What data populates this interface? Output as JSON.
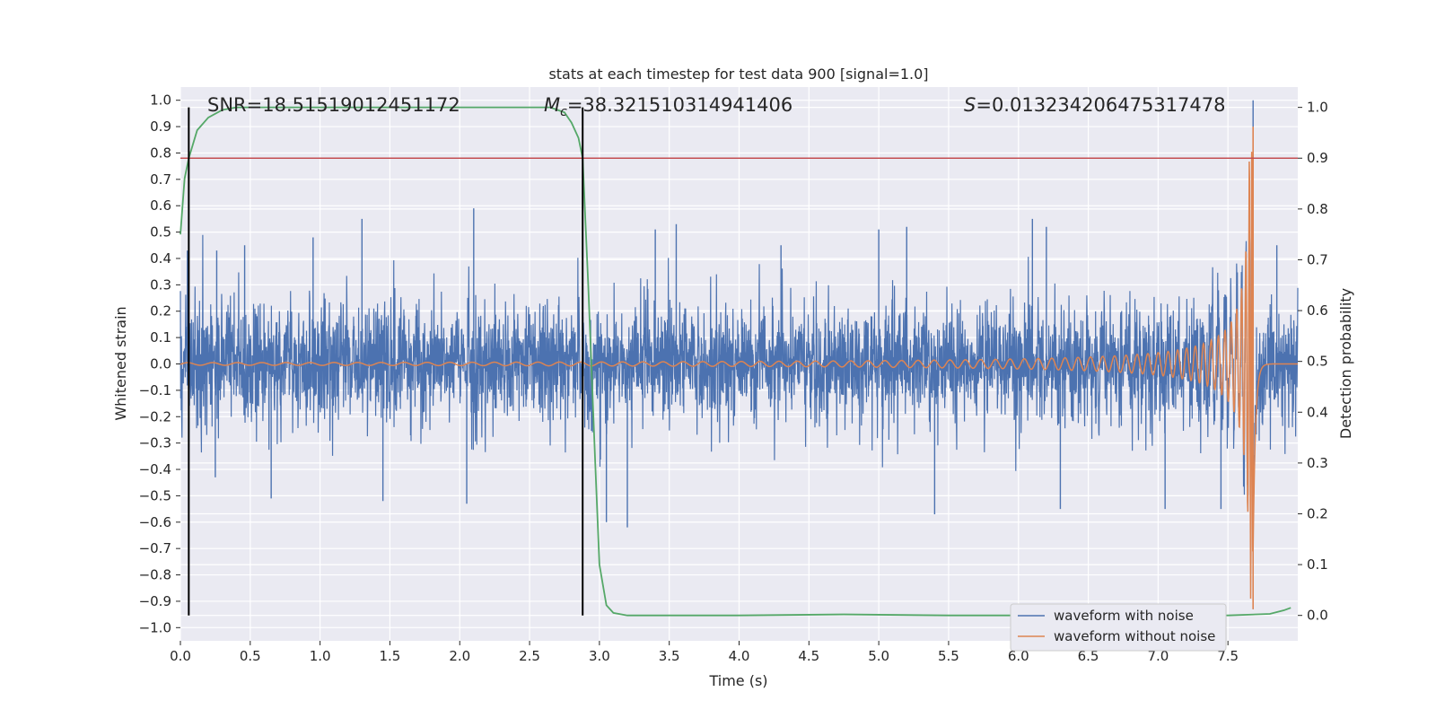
{
  "chart_data": {
    "type": "line",
    "title": "stats at each timestep for test data 900 [signal=1.0]",
    "xlabel": "Time (s)",
    "ylabel_left": "Whitened strain",
    "ylabel_right": "Detection probability",
    "xlim": [
      0,
      8.0
    ],
    "ylim_left": [
      -1.05,
      1.05
    ],
    "ylim_right": [
      -0.05,
      1.04
    ],
    "x_ticks": [
      "0.0",
      "0.5",
      "1.0",
      "1.5",
      "2.0",
      "2.5",
      "3.0",
      "3.5",
      "4.0",
      "4.5",
      "5.0",
      "5.5",
      "6.0",
      "6.5",
      "7.0",
      "7.5"
    ],
    "y_ticks_left": [
      "1.0",
      "0.9",
      "0.8",
      "0.7",
      "0.6",
      "0.5",
      "0.4",
      "0.3",
      "0.2",
      "0.1",
      "0.0",
      "−0.1",
      "−0.2",
      "−0.3",
      "−0.4",
      "−0.5",
      "−0.6",
      "−0.7",
      "−0.8",
      "−0.9",
      "−1.0"
    ],
    "y_ticks_right": [
      "1.0",
      "0.9",
      "0.8",
      "0.7",
      "0.6",
      "0.5",
      "0.4",
      "0.3",
      "0.2",
      "0.1",
      "0.0"
    ],
    "annotations": {
      "snr": "SNR=18.51519012451172",
      "mc_symbol": "M",
      "mc_sub": "c",
      "mc_value": "=38.321510314941406",
      "s_symbol": "S",
      "s_value": "=0.013234206475317478"
    },
    "detection_threshold": 0.9,
    "vertical_markers_s": [
      0.06,
      2.88
    ],
    "series": [
      {
        "name": "waveform with noise",
        "color": "#4c72b0",
        "noise_envelope_typical": 0.3,
        "noise_spikes": [
          {
            "t": 0.05,
            "v": 0.43
          },
          {
            "t": 0.26,
            "v": 0.43
          },
          {
            "t": 0.46,
            "v": 0.45
          },
          {
            "t": 0.95,
            "v": 0.48
          },
          {
            "t": 1.3,
            "v": 0.55
          },
          {
            "t": 2.1,
            "v": 0.59
          },
          {
            "t": 3.4,
            "v": 0.51
          },
          {
            "t": 3.55,
            "v": 0.53
          },
          {
            "t": 4.3,
            "v": 0.45
          },
          {
            "t": 5.0,
            "v": 0.51
          },
          {
            "t": 5.2,
            "v": 0.52
          },
          {
            "t": 6.2,
            "v": 0.52
          },
          {
            "t": 6.1,
            "v": 0.55
          },
          {
            "t": 7.85,
            "v": 0.45
          },
          {
            "t": 0.25,
            "v": -0.43
          },
          {
            "t": 0.65,
            "v": -0.51
          },
          {
            "t": 1.45,
            "v": -0.52
          },
          {
            "t": 2.05,
            "v": -0.53
          },
          {
            "t": 3.2,
            "v": -0.62
          },
          {
            "t": 3.05,
            "v": -0.6
          },
          {
            "t": 5.4,
            "v": -0.57
          },
          {
            "t": 6.3,
            "v": -0.55
          },
          {
            "t": 7.05,
            "v": -0.55
          },
          {
            "t": 7.45,
            "v": -0.55
          }
        ],
        "merger_peak": {
          "t": 7.68,
          "max": 1.0,
          "min": -0.93
        }
      },
      {
        "name": "waveform without noise",
        "color": "#dd8452",
        "chirp": {
          "t_merger": 7.68,
          "amp_at_5s": 0.005,
          "amp_at_7s": 0.05,
          "amp_at_7_5s": 0.15,
          "peak": 0.9
        }
      },
      {
        "name": "detection probability",
        "color": "#55a868",
        "x": [
          0.0,
          0.03,
          0.06,
          0.12,
          0.2,
          0.3,
          0.4,
          0.6,
          1.0,
          1.5,
          2.0,
          2.5,
          2.65,
          2.7,
          2.75,
          2.8,
          2.85,
          2.88,
          2.92,
          2.97,
          3.0,
          3.05,
          3.1,
          3.2,
          4.0,
          4.75,
          5.5,
          7.5,
          7.8,
          7.9,
          7.95
        ],
        "y": [
          0.75,
          0.86,
          0.9,
          0.955,
          0.98,
          0.995,
          1.0,
          1.0,
          1.0,
          1.0,
          1.0,
          1.0,
          1.0,
          0.995,
          0.99,
          0.97,
          0.94,
          0.9,
          0.65,
          0.3,
          0.1,
          0.02,
          0.005,
          0.0,
          0.0,
          0.002,
          0.0,
          0.0,
          0.003,
          0.01,
          0.015
        ]
      },
      {
        "name": "threshold",
        "color": "#c44e52"
      }
    ],
    "legend": {
      "position": "lower-right",
      "entries": [
        "waveform with noise",
        "waveform without noise"
      ]
    }
  }
}
